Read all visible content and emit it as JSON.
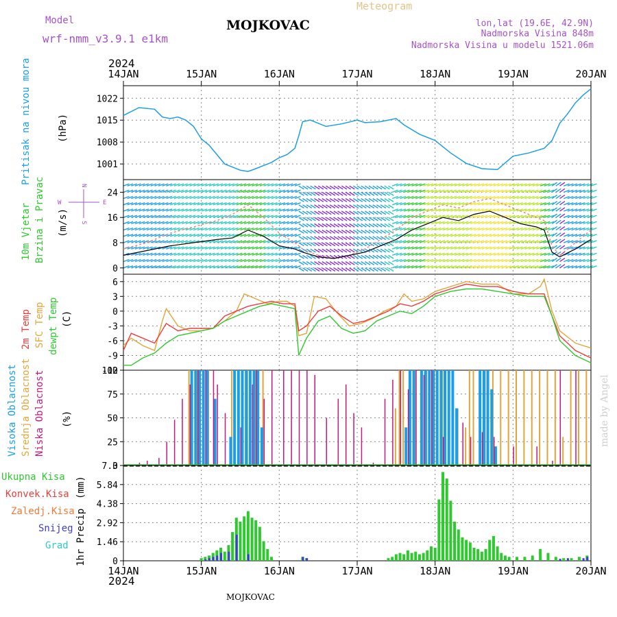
{
  "header": {
    "model_label": "Model",
    "model_name": "wrf-nmm_v3.9.1 e1km",
    "station": "MOJKOVAC",
    "title": "Meteogram",
    "lonlat": "lon,lat (19.6E, 42.9N)",
    "elevation": "Nadmorska Visina 848m",
    "model_elevation": "Nadmorska Visina u modelu 1521.06m",
    "year_top": "2024",
    "year_bottom": "2024",
    "footer_station": "MOJKOVAC",
    "watermark": "made by Angel"
  },
  "colors": {
    "pressure": "#1a9ee6",
    "temp2m": "#ef3b3b",
    "sfc_temp": "#e3a53a",
    "dewpoint": "#2ec92e",
    "cloud_high": "#1a9ee6",
    "cloud_mid": "#e3a53a",
    "cloud_low": "#c2197e",
    "precip_total": "#2ec92e",
    "precip_conv": "#ef3b3b",
    "precip_frz": "#f07b3a",
    "precip_snow": "#3c3cd6",
    "precip_graupel": "#2ec9c9",
    "model_text": "#a552c9",
    "title_text": "#e3c48a"
  },
  "chart_data": [
    {
      "type": "line",
      "panel": "pressure",
      "ylabel": "Pritisak na nivou mora",
      "unit": "(hPa)",
      "x_ticks": [
        "14JAN",
        "15JAN",
        "16JAN",
        "17JAN",
        "18JAN",
        "19JAN",
        "20JAN"
      ],
      "ylim": [
        996,
        1026
      ],
      "y_ticks": [
        1001,
        1008,
        1015,
        1022
      ],
      "grid": true,
      "series": [
        {
          "name": "Pritisak",
          "x_days": [
            0,
            0.2,
            0.4,
            0.5,
            0.6,
            0.7,
            0.8,
            0.9,
            1.0,
            1.1,
            1.2,
            1.3,
            1.5,
            1.6,
            1.7,
            1.8,
            1.9,
            2.0,
            2.1,
            2.2,
            2.25,
            2.3,
            2.4,
            2.6,
            2.8,
            3.0,
            3.1,
            3.3,
            3.5,
            3.6,
            3.8,
            4.0,
            4.2,
            4.4,
            4.6,
            4.8,
            5.0,
            5.2,
            5.4,
            5.5,
            5.6,
            5.7,
            5.8,
            5.9,
            6.0
          ],
          "values": [
            1016.5,
            1019,
            1018.5,
            1016,
            1015.5,
            1016,
            1015,
            1013,
            1009,
            1007,
            1004,
            1001,
            999,
            998.6,
            999.5,
            1000.5,
            1001.5,
            1003,
            1004,
            1006,
            1010,
            1014.5,
            1015,
            1013,
            1013.8,
            1015,
            1014.2,
            1014.5,
            1015.5,
            1013.5,
            1010.5,
            1008.5,
            1004.5,
            1001.2,
            999.5,
            999.2,
            1003.5,
            1004.5,
            1006,
            1008.5,
            1014,
            1017,
            1020.5,
            1023,
            1025
          ]
        }
      ]
    },
    {
      "type": "line",
      "panel": "wind",
      "ylabel": "10m Vjetar Brzina i Pravac",
      "unit": "(m/s)",
      "compass": {
        "n": "N",
        "s": "S",
        "e": "E",
        "w": "W"
      },
      "ylim": [
        -2,
        28
      ],
      "y_ticks": [
        0,
        8,
        16,
        24
      ],
      "grid": true,
      "series": [
        {
          "name": "Brzina",
          "x_days": [
            0,
            0.3,
            0.6,
            0.9,
            1.2,
            1.4,
            1.6,
            1.8,
            2.0,
            2.2,
            2.3,
            2.5,
            2.7,
            2.9,
            3.1,
            3.3,
            3.5,
            3.7,
            3.9,
            4.1,
            4.3,
            4.5,
            4.7,
            4.9,
            5.1,
            5.3,
            5.4,
            5.5,
            5.6,
            5.8,
            6.0
          ],
          "values": [
            4,
            5.5,
            7,
            8,
            9,
            9.5,
            12,
            10,
            7,
            6,
            5,
            3.5,
            3,
            4,
            5,
            7,
            9,
            12,
            14,
            16,
            15,
            17,
            18,
            16,
            14,
            13,
            12,
            5,
            3.5,
            6,
            9
          ]
        },
        {
          "name": "Udari",
          "x_days": [
            0,
            0.3,
            0.6,
            0.9,
            1.2,
            1.4,
            1.6,
            1.8,
            2.0,
            2.2,
            2.3,
            2.5,
            2.7,
            2.9,
            3.1,
            3.3,
            3.5,
            3.7,
            3.9,
            4.1,
            4.3,
            4.5,
            4.7,
            4.9,
            5.1,
            5.3,
            5.4,
            5.5,
            5.6,
            5.8,
            6.0
          ],
          "values": [
            6,
            8,
            11,
            13,
            15,
            17,
            20,
            16,
            11,
            8,
            6,
            4,
            3,
            4,
            6,
            9,
            12,
            16,
            18,
            20,
            19,
            21,
            22,
            20,
            18,
            16,
            15,
            7,
            4,
            8,
            12
          ]
        }
      ]
    },
    {
      "type": "line",
      "panel": "temperature",
      "ylabel": "2m Temp / SFC Temp / dewpt Temp",
      "series_labels": [
        "2m Temp",
        "SFC Temp",
        "dewpt Temp"
      ],
      "unit": "(C)",
      "ylim": [
        -12,
        7.5
      ],
      "y_ticks": [
        -12,
        -9,
        -6,
        -3,
        0,
        3,
        6
      ],
      "grid": true,
      "series": [
        {
          "name": "2m Temp",
          "x_days": [
            0,
            0.1,
            0.25,
            0.4,
            0.55,
            0.7,
            0.85,
            1.0,
            1.15,
            1.3,
            1.45,
            1.6,
            1.75,
            1.9,
            2.05,
            2.2,
            2.25,
            2.35,
            2.5,
            2.65,
            2.8,
            2.95,
            3.1,
            3.25,
            3.4,
            3.55,
            3.7,
            3.85,
            4.0,
            4.2,
            4.4,
            4.6,
            4.8,
            5.0,
            5.2,
            5.4,
            5.5,
            5.6,
            5.8,
            6.0
          ],
          "values": [
            -8,
            -4.5,
            -5.5,
            -6.5,
            -2.5,
            -4,
            -3.5,
            -3.5,
            -3.5,
            -1,
            0,
            1,
            1.5,
            2,
            1.5,
            1.5,
            -4,
            -3,
            0,
            1,
            -1,
            -2.5,
            -2,
            -1,
            0,
            1.5,
            1,
            2,
            3.5,
            4.5,
            5.5,
            5,
            5,
            4,
            3.5,
            3.5,
            -1,
            -5,
            -8,
            -9.5
          ]
        },
        {
          "name": "SFC Temp",
          "x_days": [
            0,
            0.1,
            0.25,
            0.4,
            0.5,
            0.55,
            0.7,
            0.85,
            1.0,
            1.15,
            1.3,
            1.45,
            1.55,
            1.7,
            1.85,
            2.0,
            2.1,
            2.2,
            2.25,
            2.35,
            2.45,
            2.6,
            2.75,
            2.9,
            3.05,
            3.2,
            3.35,
            3.5,
            3.6,
            3.7,
            3.85,
            4.0,
            4.2,
            4.4,
            4.6,
            4.8,
            5.0,
            5.2,
            5.35,
            5.4,
            5.5,
            5.6,
            5.8,
            6.0
          ],
          "values": [
            -7,
            -5.5,
            -7,
            -8,
            -2,
            0.5,
            -3,
            -4,
            -4,
            -3.5,
            -2,
            0,
            3.5,
            2.5,
            1.5,
            2,
            2,
            1,
            -5,
            -4.5,
            3,
            2.5,
            -0.5,
            -3,
            -2.5,
            -1.5,
            0,
            1,
            3.5,
            2,
            2.5,
            4,
            5,
            6,
            5.5,
            5.5,
            3.5,
            3.5,
            5,
            6.5,
            0,
            -4,
            -6.5,
            -7.5
          ]
        },
        {
          "name": "dewpt Temp",
          "x_days": [
            0,
            0.1,
            0.25,
            0.4,
            0.55,
            0.7,
            0.85,
            1.0,
            1.15,
            1.3,
            1.45,
            1.6,
            1.75,
            1.9,
            2.05,
            2.2,
            2.25,
            2.35,
            2.5,
            2.65,
            2.8,
            2.95,
            3.1,
            3.25,
            3.4,
            3.55,
            3.7,
            3.85,
            4.0,
            4.2,
            4.4,
            4.6,
            4.8,
            5.0,
            5.2,
            5.4,
            5.5,
            5.6,
            5.8,
            6.0
          ],
          "values": [
            -11,
            -11,
            -9.5,
            -8.5,
            -6.5,
            -5,
            -4.5,
            -4,
            -3.5,
            -2,
            -1,
            0,
            1,
            1.5,
            1,
            0.5,
            -9,
            -5.5,
            -2,
            -1,
            -3.5,
            -4.5,
            -4,
            -2,
            -1,
            0,
            -0.5,
            1,
            3,
            4,
            4.5,
            4.5,
            4,
            3.5,
            3,
            3,
            -1,
            -6,
            -9,
            -10.5
          ]
        }
      ]
    },
    {
      "type": "bar",
      "panel": "clouds",
      "ylabel": "Visoka / Srednja / Niska Oblacnost",
      "series_labels": [
        "Visoka Oblacnost",
        "Srednja Oblacnost",
        "Niska Oblacnost"
      ],
      "unit": "(%)",
      "ylim": [
        0,
        100
      ],
      "y_ticks": [
        0,
        25,
        50,
        75,
        100
      ],
      "grid": true,
      "series": [
        {
          "name": "Visoka",
          "x_days": [
            0.85,
            0.9,
            0.95,
            1.0,
            1.05,
            1.15,
            1.35,
            1.4,
            1.45,
            1.5,
            1.55,
            1.6,
            1.65,
            1.7,
            1.75,
            3.6,
            3.65,
            3.7,
            3.8,
            3.85,
            3.9,
            3.95,
            4.0,
            4.05,
            4.1,
            4.15,
            4.2,
            4.25,
            4.55,
            4.6,
            4.65,
            4.7,
            4.75
          ],
          "values": [
            100,
            100,
            100,
            100,
            100,
            70,
            30,
            100,
            100,
            100,
            100,
            100,
            100,
            100,
            40,
            40,
            100,
            100,
            100,
            100,
            100,
            100,
            100,
            100,
            100,
            100,
            100,
            60,
            100,
            100,
            100,
            80,
            20
          ]
        },
        {
          "name": "Srednja",
          "x_days": [
            0.85,
            0.95,
            1.1,
            1.4,
            1.6,
            1.7,
            1.8,
            3.5,
            3.55,
            3.6,
            3.75,
            3.9,
            4.0,
            4.1,
            4.3,
            4.4,
            4.45,
            4.5,
            4.65,
            4.75,
            4.85,
            4.95,
            5.05,
            5.15,
            5.25,
            5.35,
            5.45,
            5.55,
            5.65,
            5.75,
            5.85,
            5.95
          ],
          "values": [
            100,
            100,
            100,
            100,
            100,
            100,
            100,
            60,
            100,
            100,
            100,
            100,
            100,
            100,
            60,
            40,
            100,
            100,
            100,
            100,
            100,
            100,
            100,
            100,
            100,
            100,
            100,
            100,
            30,
            100,
            100,
            100
          ]
        },
        {
          "name": "Niska",
          "x_days": [
            0.2,
            0.3,
            0.45,
            0.55,
            0.65,
            0.75,
            0.85,
            0.95,
            1.05,
            1.15,
            1.2,
            1.3,
            1.5,
            1.65,
            1.7,
            1.8,
            1.9,
            2.05,
            2.15,
            2.25,
            2.35,
            2.45,
            2.6,
            2.75,
            2.85,
            2.95,
            3.05,
            3.2,
            3.35,
            3.45,
            3.55,
            3.65,
            3.75,
            3.85,
            3.95,
            4.1,
            4.35,
            4.45,
            4.6,
            4.75,
            5.0,
            5.3,
            5.5,
            5.6,
            5.8
          ],
          "values": [
            3,
            5,
            8,
            25,
            48,
            70,
            85,
            100,
            100,
            100,
            85,
            55,
            40,
            85,
            100,
            70,
            100,
            100,
            100,
            100,
            100,
            95,
            50,
            70,
            85,
            55,
            40,
            3,
            70,
            90,
            100,
            80,
            100,
            95,
            100,
            30,
            45,
            30,
            35,
            30,
            20,
            20,
            5,
            100,
            100
          ]
        }
      ]
    },
    {
      "type": "bar",
      "panel": "precip",
      "ylabel": "1hr Precip",
      "unit": "(mm)",
      "legend": [
        "Ukupna Kisa",
        "Konvek.Kisa",
        "Zaledj.Kisa",
        "Snijeg",
        "Grad"
      ],
      "ylim": [
        0,
        7.3
      ],
      "y_ticks": [
        0,
        1.46,
        2.92,
        4.38,
        5.84,
        7.3
      ],
      "grid": true,
      "series": [
        {
          "name": "Ukupna Kisa",
          "x_days": [
            1.0,
            1.05,
            1.1,
            1.15,
            1.2,
            1.25,
            1.3,
            1.35,
            1.4,
            1.45,
            1.5,
            1.55,
            1.6,
            1.65,
            1.7,
            1.75,
            1.8,
            1.85,
            1.9,
            2.3,
            2.35,
            3.4,
            3.45,
            3.5,
            3.55,
            3.6,
            3.65,
            3.7,
            3.75,
            3.8,
            3.85,
            3.9,
            3.95,
            4.0,
            4.05,
            4.1,
            4.15,
            4.2,
            4.25,
            4.3,
            4.35,
            4.4,
            4.45,
            4.5,
            4.55,
            4.6,
            4.65,
            4.7,
            4.75,
            4.8,
            4.85,
            4.9,
            4.95,
            5.05,
            5.15,
            5.25,
            5.35,
            5.45,
            5.55,
            5.65,
            5.75,
            5.85,
            5.95
          ],
          "values": [
            0.2,
            0.3,
            0.4,
            0.6,
            0.8,
            1.0,
            0.7,
            1.2,
            2.2,
            3.3,
            3.0,
            3.4,
            3.8,
            3.3,
            3.1,
            2.6,
            1.5,
            0.9,
            0.3,
            0.3,
            0.2,
            0.2,
            0.3,
            0.5,
            0.6,
            0.5,
            0.8,
            0.6,
            0.7,
            0.5,
            0.6,
            0.8,
            1.1,
            1.0,
            4.7,
            6.8,
            6.3,
            4.6,
            3.0,
            2.4,
            1.8,
            1.6,
            1.4,
            1.0,
            0.9,
            0.7,
            0.9,
            1.6,
            1.9,
            1.1,
            0.6,
            0.4,
            0.3,
            0.3,
            0.3,
            0.4,
            0.9,
            0.6,
            0.3,
            0.2,
            0.2,
            0.3,
            0.4
          ]
        },
        {
          "name": "Snijeg",
          "x_days": [
            1.05,
            1.1,
            1.15,
            1.2,
            1.25,
            1.35,
            1.45,
            1.6,
            2.3,
            2.35,
            5.6,
            5.7,
            5.9,
            5.95
          ],
          "values": [
            0.1,
            0.2,
            0.3,
            0.4,
            0.6,
            0.7,
            2.0,
            0.5,
            0.3,
            0.2,
            0.15,
            0.2,
            0.2,
            0.3
          ]
        }
      ]
    }
  ]
}
